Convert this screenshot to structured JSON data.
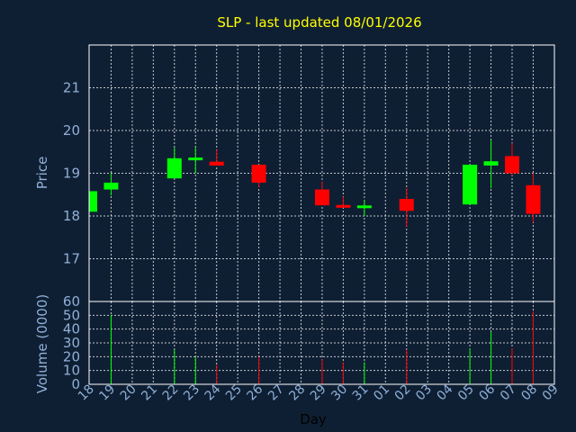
{
  "colors": {
    "background": "#0f1f33",
    "up": "#00ff00",
    "down": "#ff0000",
    "title": "#ffff00",
    "axis_text": "#8fb0d8",
    "grid": "#ffffff"
  },
  "chart_data": [
    {
      "type": "candlestick",
      "title": "SLP - last updated 08/01/2026",
      "ylabel": "Price",
      "ylim": [
        16,
        22
      ],
      "yticks": [
        17,
        18,
        19,
        20,
        21
      ],
      "grid": true,
      "categories": [
        "18",
        "19",
        "20",
        "21",
        "22",
        "23",
        "24",
        "25",
        "26",
        "27",
        "28",
        "29",
        "30",
        "31",
        "01",
        "02",
        "03",
        "04",
        "05",
        "06",
        "07",
        "08",
        "09"
      ],
      "candles": [
        {
          "x": "18",
          "open": 18.1,
          "close": 18.58,
          "high": 18.58,
          "low": 18.1
        },
        {
          "x": "19",
          "open": 18.62,
          "close": 18.78,
          "high": 19.0,
          "low": 18.48
        },
        {
          "x": "22",
          "open": 18.88,
          "close": 19.35,
          "high": 19.6,
          "low": 18.88
        },
        {
          "x": "23",
          "open": 19.32,
          "close": 19.35,
          "high": 19.6,
          "low": 19.0
        },
        {
          "x": "24",
          "open": 19.27,
          "close": 19.18,
          "high": 19.55,
          "low": 19.18
        },
        {
          "x": "26",
          "open": 19.2,
          "close": 18.78,
          "high": 19.2,
          "low": 18.68
        },
        {
          "x": "29",
          "open": 18.62,
          "close": 18.25,
          "high": 18.8,
          "low": 18.25
        },
        {
          "x": "30",
          "open": 18.25,
          "close": 18.2,
          "high": 18.45,
          "low": 18.2
        },
        {
          "x": "31",
          "open": 18.2,
          "close": 18.23,
          "high": 18.38,
          "low": 18.0
        },
        {
          "x": "02",
          "open": 18.4,
          "close": 18.12,
          "high": 18.65,
          "low": 17.75
        },
        {
          "x": "05",
          "open": 18.27,
          "close": 19.2,
          "high": 19.2,
          "low": 18.27
        },
        {
          "x": "06",
          "open": 19.18,
          "close": 19.28,
          "high": 19.78,
          "low": 18.65
        },
        {
          "x": "07",
          "open": 19.4,
          "close": 19.0,
          "high": 19.7,
          "low": 18.95
        },
        {
          "x": "08",
          "open": 18.72,
          "close": 18.05,
          "high": 19.0,
          "low": 17.85
        }
      ]
    },
    {
      "type": "bar",
      "ylabel": "Volume (0000)",
      "xlabel": "Day",
      "ylim": [
        0,
        60
      ],
      "yticks": [
        0,
        10,
        20,
        30,
        40,
        50,
        60
      ],
      "grid": true,
      "categories": [
        "18",
        "19",
        "20",
        "21",
        "22",
        "23",
        "24",
        "25",
        "26",
        "27",
        "28",
        "29",
        "30",
        "31",
        "01",
        "02",
        "03",
        "04",
        "05",
        "06",
        "07",
        "08",
        "09"
      ],
      "bars": [
        {
          "x": "19",
          "value": 50,
          "dir": "up"
        },
        {
          "x": "22",
          "value": 25,
          "dir": "up"
        },
        {
          "x": "23",
          "value": 20,
          "dir": "up"
        },
        {
          "x": "24",
          "value": 14,
          "dir": "down"
        },
        {
          "x": "26",
          "value": 20,
          "dir": "down"
        },
        {
          "x": "29",
          "value": 18,
          "dir": "down"
        },
        {
          "x": "30",
          "value": 16,
          "dir": "down"
        },
        {
          "x": "31",
          "value": 16,
          "dir": "up"
        },
        {
          "x": "02",
          "value": 25,
          "dir": "down"
        },
        {
          "x": "05",
          "value": 26,
          "dir": "up"
        },
        {
          "x": "06",
          "value": 38,
          "dir": "up"
        },
        {
          "x": "07",
          "value": 26,
          "dir": "down"
        },
        {
          "x": "08",
          "value": 53,
          "dir": "down"
        }
      ]
    }
  ]
}
